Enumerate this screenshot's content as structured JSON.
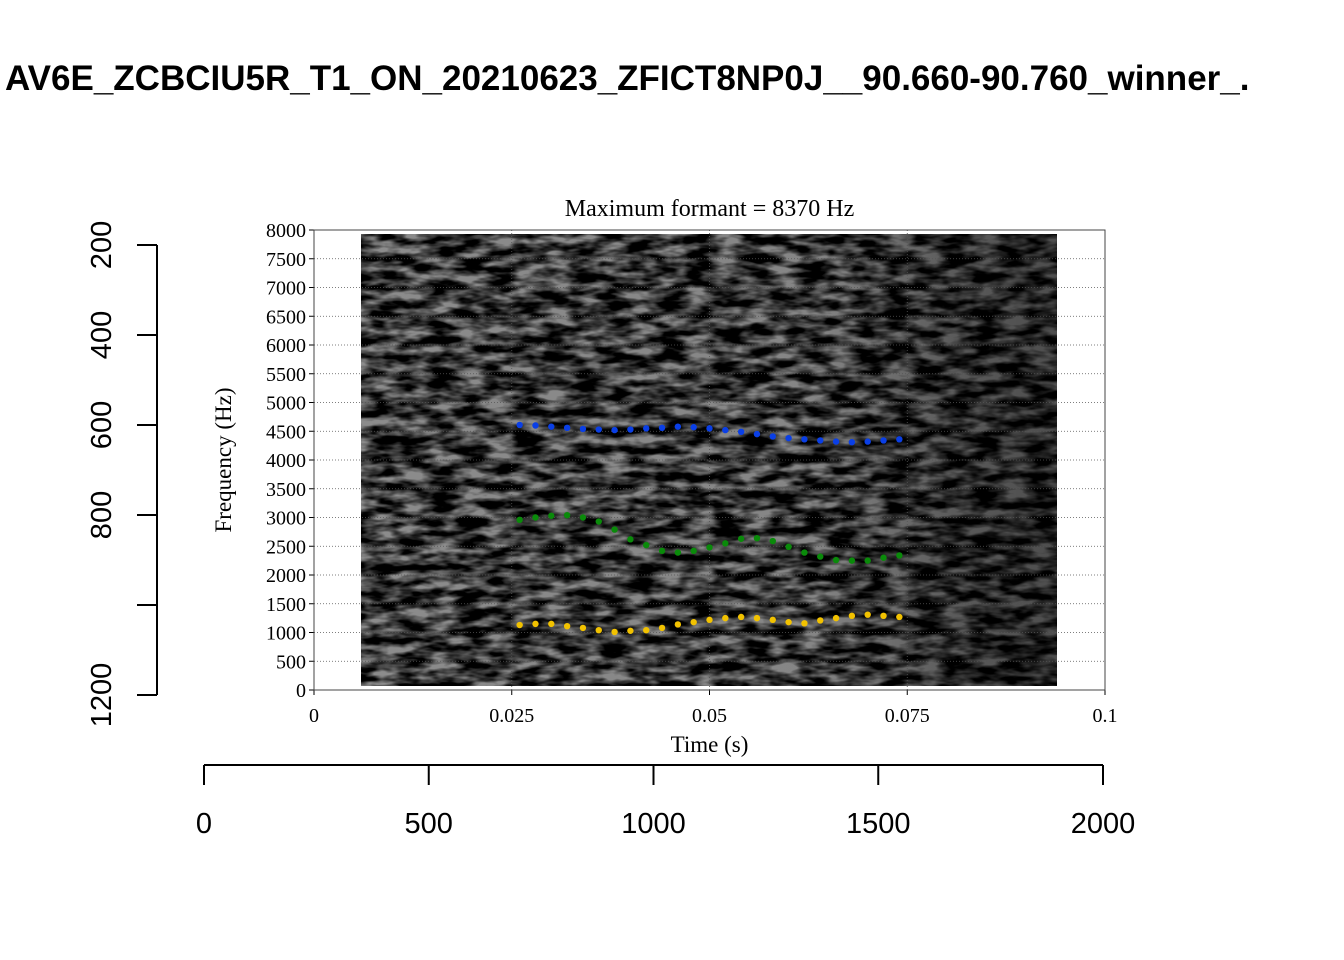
{
  "chart_data": [
    {
      "type": "axes",
      "title": "AV6E_ZCBCIU5R_T1_ON_20210623_ZFICT8NP0J__90.660-90.760_winner_.",
      "xlim": [
        0,
        2000
      ],
      "xticks": [
        0,
        500,
        1000,
        1500,
        2000
      ],
      "ylim": [
        1200,
        200
      ],
      "yticks": [
        200,
        400,
        600,
        800,
        {
          "value": 1000,
          "label": null
        },
        1200
      ]
    },
    {
      "type": "scatter",
      "title": "Maximum formant = 8370 Hz",
      "xlabel": "Time (s)",
      "ylabel": "Frequency (Hz)",
      "xlim": [
        0,
        0.1
      ],
      "xticks": [
        0,
        0.025,
        0.05,
        0.075,
        0.1
      ],
      "ylim": [
        0,
        8000
      ],
      "yticks": [
        0,
        500,
        1000,
        1500,
        2000,
        2500,
        3000,
        3500,
        4000,
        4500,
        5000,
        5500,
        6000,
        6500,
        7000,
        7500,
        8000
      ],
      "grid": true,
      "x": [
        0.026,
        0.028,
        0.03,
        0.032,
        0.034,
        0.036,
        0.038,
        0.04,
        0.042,
        0.044,
        0.046,
        0.048,
        0.05,
        0.052,
        0.054,
        0.056,
        0.058,
        0.06,
        0.062,
        0.064,
        0.066,
        0.068,
        0.07,
        0.072,
        0.074
      ],
      "series": [
        {
          "color": "#0a3fe6",
          "values": [
            4610,
            4600,
            4580,
            4560,
            4540,
            4530,
            4520,
            4530,
            4550,
            4560,
            4580,
            4570,
            4550,
            4520,
            4490,
            4450,
            4410,
            4380,
            4360,
            4340,
            4320,
            4310,
            4320,
            4340,
            4360
          ]
        },
        {
          "color": "#0a8a0a",
          "values": [
            2960,
            3000,
            3030,
            3040,
            3000,
            2930,
            2790,
            2620,
            2520,
            2420,
            2390,
            2420,
            2480,
            2550,
            2630,
            2640,
            2590,
            2490,
            2390,
            2320,
            2260,
            2250,
            2250,
            2300,
            2340
          ]
        },
        {
          "color": "#f2c200",
          "values": [
            1130,
            1150,
            1150,
            1110,
            1080,
            1040,
            1010,
            1030,
            1040,
            1080,
            1140,
            1180,
            1220,
            1250,
            1270,
            1250,
            1220,
            1180,
            1160,
            1210,
            1250,
            1290,
            1310,
            1290,
            1270
          ]
        }
      ]
    }
  ]
}
